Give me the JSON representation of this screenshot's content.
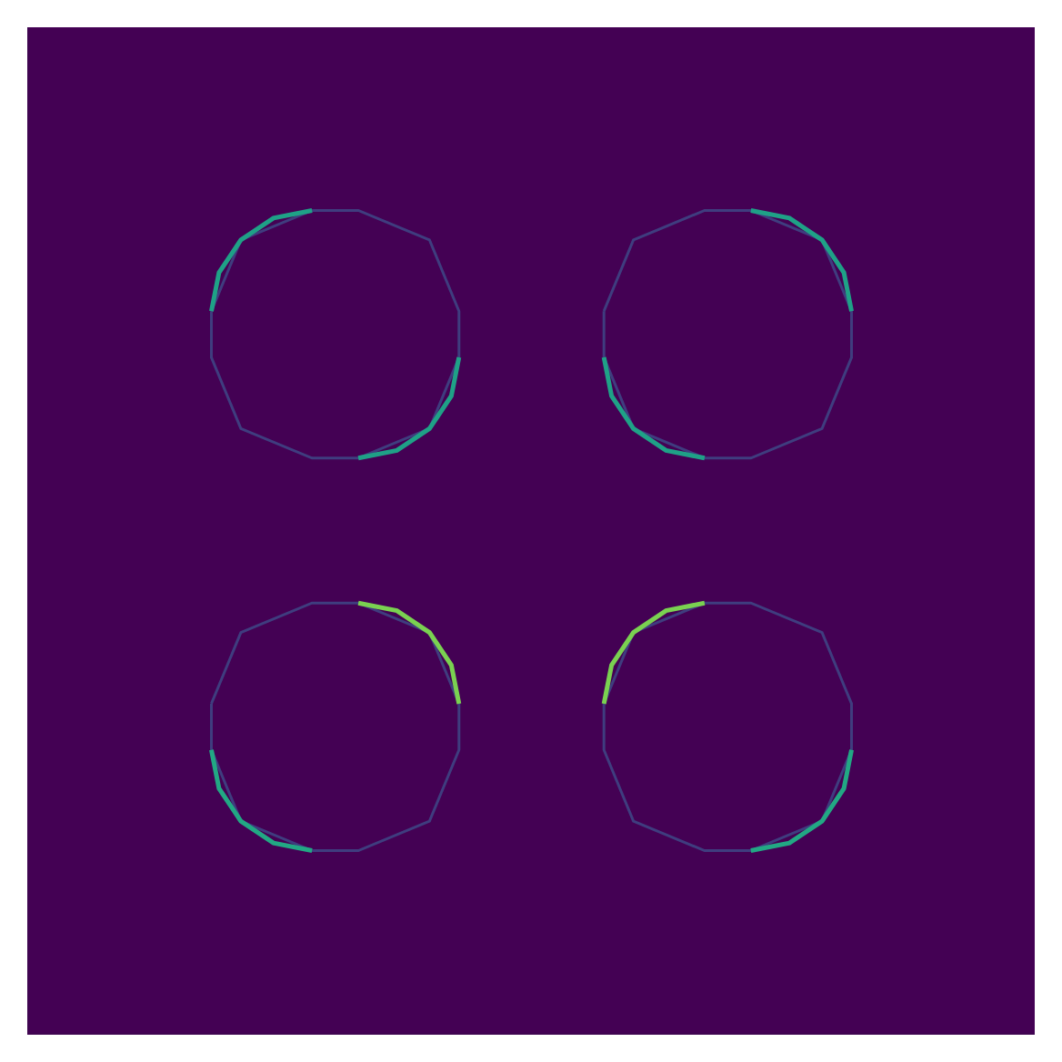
{
  "chart_data": {
    "type": "line",
    "xlim": [
      0,
      100
    ],
    "ylim": [
      0,
      100
    ],
    "tick_labels": false,
    "grid": false,
    "marker": "none",
    "line_style": "solid",
    "series": [
      {
        "color": "#3e4c8a",
        "points": [
          [
            18.2,
            71.8
          ],
          [
            21.13,
            78.87
          ],
          [
            28.2,
            81.8
          ],
          [
            32.8,
            81.8
          ],
          [
            39.87,
            78.87
          ],
          [
            42.8,
            71.8
          ],
          [
            42.8,
            67.2
          ],
          [
            39.87,
            60.13
          ],
          [
            32.8,
            57.2
          ],
          [
            28.2,
            57.2
          ],
          [
            21.13,
            60.13
          ],
          [
            18.2,
            67.2
          ],
          [
            18.2,
            71.8
          ]
        ]
      },
      {
        "color": "#3e4c8a",
        "points": [
          [
            57.2,
            71.8
          ],
          [
            60.13,
            78.87
          ],
          [
            67.2,
            81.8
          ],
          [
            71.8,
            81.8
          ],
          [
            78.87,
            78.87
          ],
          [
            81.8,
            71.8
          ],
          [
            81.8,
            67.2
          ],
          [
            78.87,
            60.13
          ],
          [
            71.8,
            57.2
          ],
          [
            67.2,
            57.2
          ],
          [
            60.13,
            60.13
          ],
          [
            57.2,
            67.2
          ],
          [
            57.2,
            71.8
          ]
        ]
      },
      {
        "color": "#3e4c8a",
        "points": [
          [
            18.2,
            32.8
          ],
          [
            21.13,
            39.87
          ],
          [
            28.2,
            42.8
          ],
          [
            32.8,
            42.8
          ],
          [
            39.87,
            39.87
          ],
          [
            42.8,
            32.8
          ],
          [
            42.8,
            28.2
          ],
          [
            39.87,
            21.13
          ],
          [
            32.8,
            18.2
          ],
          [
            28.2,
            18.2
          ],
          [
            21.13,
            21.13
          ],
          [
            18.2,
            28.2
          ],
          [
            18.2,
            32.8
          ]
        ]
      },
      {
        "color": "#3e4c8a",
        "points": [
          [
            57.2,
            32.8
          ],
          [
            60.13,
            39.87
          ],
          [
            67.2,
            42.8
          ],
          [
            71.8,
            42.8
          ],
          [
            78.87,
            39.87
          ],
          [
            81.8,
            32.8
          ],
          [
            81.8,
            28.2
          ],
          [
            78.87,
            21.13
          ],
          [
            71.8,
            18.2
          ],
          [
            67.2,
            18.2
          ],
          [
            60.13,
            21.13
          ],
          [
            57.2,
            28.2
          ],
          [
            57.2,
            32.8
          ]
        ]
      },
      {
        "color": "#1fa187",
        "points": [
          [
            18.2,
            71.8
          ],
          [
            18.96,
            75.63
          ],
          [
            21.13,
            78.87
          ],
          [
            24.37,
            81.04
          ],
          [
            28.2,
            81.8
          ]
        ]
      },
      {
        "color": "#1fa187",
        "points": [
          [
            42.8,
            67.2
          ],
          [
            42.04,
            63.37
          ],
          [
            39.87,
            60.13
          ],
          [
            36.63,
            57.96
          ],
          [
            32.8,
            57.2
          ]
        ]
      },
      {
        "color": "#1fa187",
        "points": [
          [
            71.8,
            81.8
          ],
          [
            75.63,
            81.04
          ],
          [
            78.87,
            78.87
          ],
          [
            81.04,
            75.63
          ],
          [
            81.8,
            71.8
          ]
        ]
      },
      {
        "color": "#1fa187",
        "points": [
          [
            57.2,
            67.2
          ],
          [
            57.96,
            63.37
          ],
          [
            60.13,
            60.13
          ],
          [
            63.37,
            57.96
          ],
          [
            67.2,
            57.2
          ]
        ]
      },
      {
        "color": "#7ad151",
        "points": [
          [
            32.8,
            42.8
          ],
          [
            36.63,
            42.04
          ],
          [
            39.87,
            39.87
          ],
          [
            42.04,
            36.63
          ],
          [
            42.8,
            32.8
          ]
        ]
      },
      {
        "color": "#22a884",
        "points": [
          [
            18.2,
            28.2
          ],
          [
            18.96,
            24.37
          ],
          [
            21.13,
            21.13
          ],
          [
            24.37,
            18.96
          ],
          [
            28.2,
            18.2
          ]
        ]
      },
      {
        "color": "#7ad151",
        "points": [
          [
            57.2,
            32.8
          ],
          [
            57.96,
            36.63
          ],
          [
            60.13,
            39.87
          ],
          [
            63.37,
            42.04
          ],
          [
            67.2,
            42.8
          ]
        ]
      },
      {
        "color": "#22a884",
        "points": [
          [
            81.8,
            28.2
          ],
          [
            81.04,
            24.37
          ],
          [
            78.87,
            21.13
          ],
          [
            75.63,
            18.96
          ],
          [
            71.8,
            18.2
          ]
        ]
      }
    ]
  }
}
